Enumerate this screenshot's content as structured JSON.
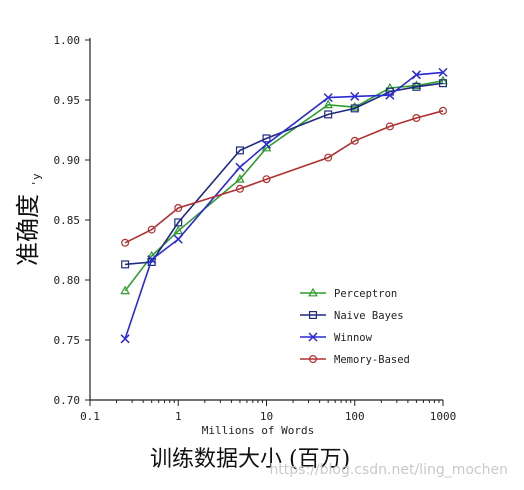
{
  "chart_data": {
    "type": "line",
    "xscale": "log",
    "xlim": [
      0.1,
      1000
    ],
    "ylim": [
      0.7,
      1.0
    ],
    "x_ticks": [
      "0.1",
      "1",
      "10",
      "100",
      "1000"
    ],
    "y_ticks": [
      "0.70",
      "0.75",
      "0.80",
      "0.85",
      "0.90",
      "0.95",
      "1.00"
    ],
    "xlabel": "Millions of Words",
    "ylabel_fragment": "'y",
    "xlabel_cn": "训练数据大小 (百万)",
    "ylabel_cn": "准确度",
    "grid": false,
    "legend_position": "lower-right",
    "series": [
      {
        "name": "Perceptron",
        "color": "#2e9e2e",
        "marker": "triangle",
        "x": [
          0.25,
          0.5,
          1,
          5,
          10,
          50,
          100,
          250,
          500,
          1000
        ],
        "y": [
          0.791,
          0.82,
          0.841,
          0.884,
          0.91,
          0.946,
          0.944,
          0.96,
          0.962,
          0.966
        ]
      },
      {
        "name": "Naive Bayes",
        "color": "#1f2a80",
        "marker": "square",
        "x": [
          0.25,
          0.5,
          1,
          5,
          10,
          50,
          100,
          250,
          500,
          1000
        ],
        "y": [
          0.813,
          0.815,
          0.848,
          0.908,
          0.918,
          0.938,
          0.943,
          0.957,
          0.961,
          0.964
        ]
      },
      {
        "name": "Winnow",
        "color": "#2a2ad6",
        "marker": "x",
        "x": [
          0.25,
          0.5,
          1,
          5,
          10,
          50,
          100,
          250,
          500,
          1000
        ],
        "y": [
          0.751,
          0.817,
          0.834,
          0.894,
          0.913,
          0.952,
          0.953,
          0.954,
          0.971,
          0.973
        ]
      },
      {
        "name": "Memory-Based",
        "color": "#b03030",
        "marker": "circle",
        "x": [
          0.25,
          0.5,
          1,
          5,
          10,
          50,
          100,
          250,
          500,
          1000
        ],
        "y": [
          0.831,
          0.842,
          0.86,
          0.876,
          0.884,
          0.902,
          0.916,
          0.928,
          0.935,
          0.941
        ]
      }
    ]
  },
  "watermark": "https://blog.csdn.net/ling_mochen"
}
